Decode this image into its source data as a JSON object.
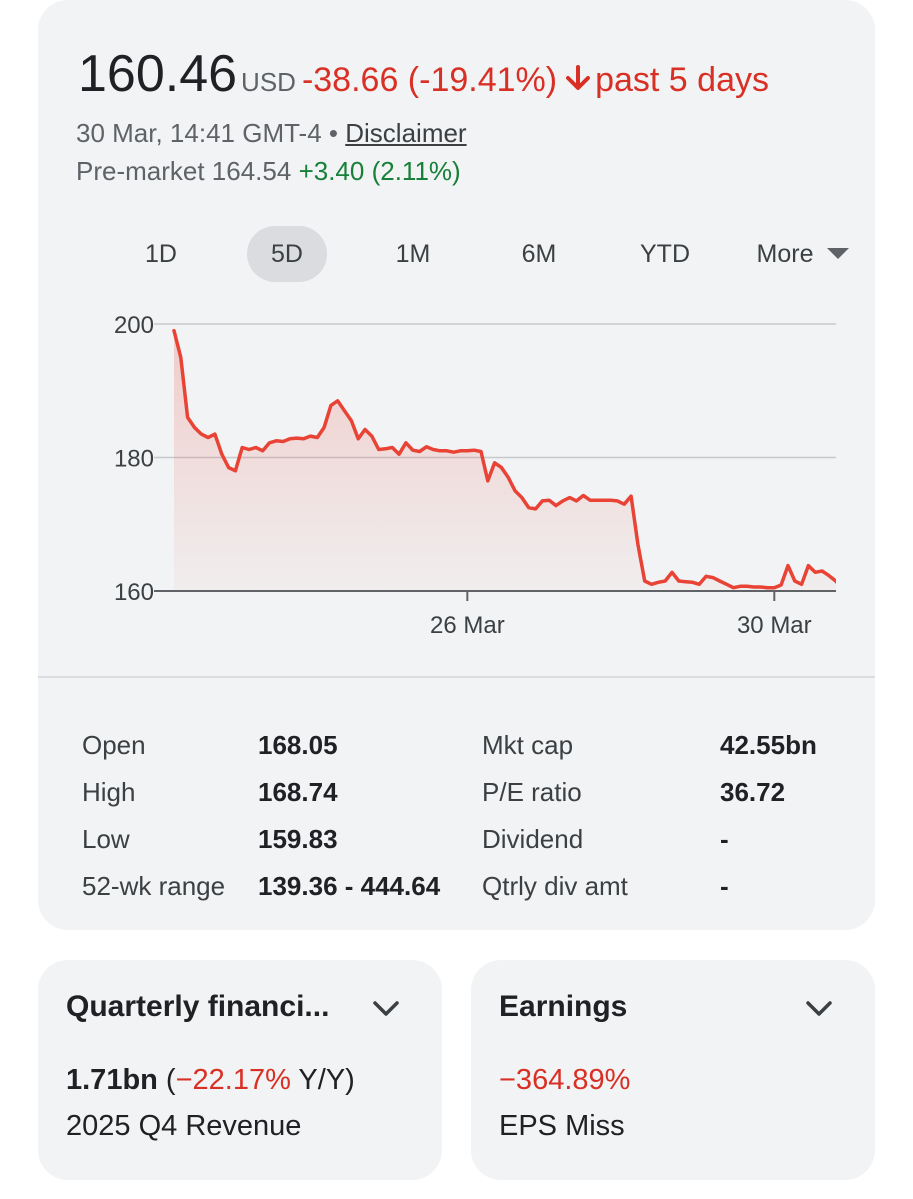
{
  "quote": {
    "price": "160.46",
    "currency": "USD",
    "change": "-38.66 (-19.41%)",
    "period": "past 5 days",
    "timestamp": "30 Mar, 14:41 GMT-4",
    "separator": "•",
    "disclaimer": "Disclaimer",
    "premarket_label": "Pre-market 164.54",
    "premarket_change": "+3.40 (2.11%)"
  },
  "tabs": [
    {
      "label": "1D"
    },
    {
      "label": "5D"
    },
    {
      "label": "1M"
    },
    {
      "label": "6M"
    },
    {
      "label": "YTD"
    },
    {
      "label": "More"
    }
  ],
  "chart_data": {
    "type": "area",
    "title": "",
    "xlabel": "",
    "ylabel": "",
    "ylim": [
      160,
      200
    ],
    "yticks": [
      200,
      180,
      160
    ],
    "xtick_labels": [
      "26 Mar",
      "30 Mar"
    ],
    "line_color": "#e84335",
    "values": [
      199,
      195,
      186,
      184.5,
      183.5,
      183,
      183.5,
      180.5,
      178.5,
      178,
      181.5,
      181.2,
      181.5,
      181,
      182.2,
      182.5,
      182.4,
      182.8,
      182.9,
      182.8,
      183.2,
      183,
      184.5,
      187.8,
      188.5,
      187,
      185.5,
      182.8,
      184.2,
      183.2,
      181.2,
      181.3,
      181.5,
      180.5,
      182.2,
      181.1,
      180.9,
      181.6,
      181.2,
      181,
      181,
      180.8,
      181,
      181,
      181.1,
      180.9,
      176.5,
      179.2,
      178.5,
      177,
      175,
      174,
      172.5,
      172.3,
      173.5,
      173.6,
      172.8,
      173.5,
      174,
      173.5,
      174.3,
      173.6,
      173.6,
      173.6,
      173.6,
      173.5,
      173,
      174.2,
      167,
      161.5,
      161,
      161.3,
      161.5,
      162.8,
      161.5,
      161.4,
      161.3,
      161,
      162.2,
      162,
      161.5,
      161,
      160.5,
      160.7,
      160.7,
      160.6,
      160.6,
      160.5,
      160.5,
      160.9,
      163.8,
      161.5,
      161,
      163.8,
      162.8,
      163,
      162.3,
      161.5,
      160.3,
      160.5,
      160.5,
      160.46
    ],
    "x_label_positions": [
      43,
      88
    ]
  },
  "stats_left": [
    {
      "label": "Open",
      "value": "168.05"
    },
    {
      "label": "High",
      "value": "168.74"
    },
    {
      "label": "Low",
      "value": "159.83"
    },
    {
      "label": "52-wk range",
      "value": "139.36 - 444.64"
    }
  ],
  "stats_right": [
    {
      "label": "Mkt cap",
      "value": "42.55bn"
    },
    {
      "label": "P/E ratio",
      "value": "36.72"
    },
    {
      "label": "Dividend",
      "value": "-"
    },
    {
      "label": "Qtrly div amt",
      "value": "-"
    }
  ],
  "financials": {
    "title": "Quarterly financi...",
    "value": "1.71bn",
    "open_paren": " (",
    "change": "−22.17%",
    "change_suffix": " Y/Y)",
    "subtitle": "2025 Q4 Revenue"
  },
  "earnings": {
    "title": "Earnings",
    "value": "−364.89%",
    "subtitle": "EPS Miss"
  },
  "colors": {
    "negative": "#d93025",
    "positive": "#188038",
    "card_bg": "#f1f3f4"
  }
}
